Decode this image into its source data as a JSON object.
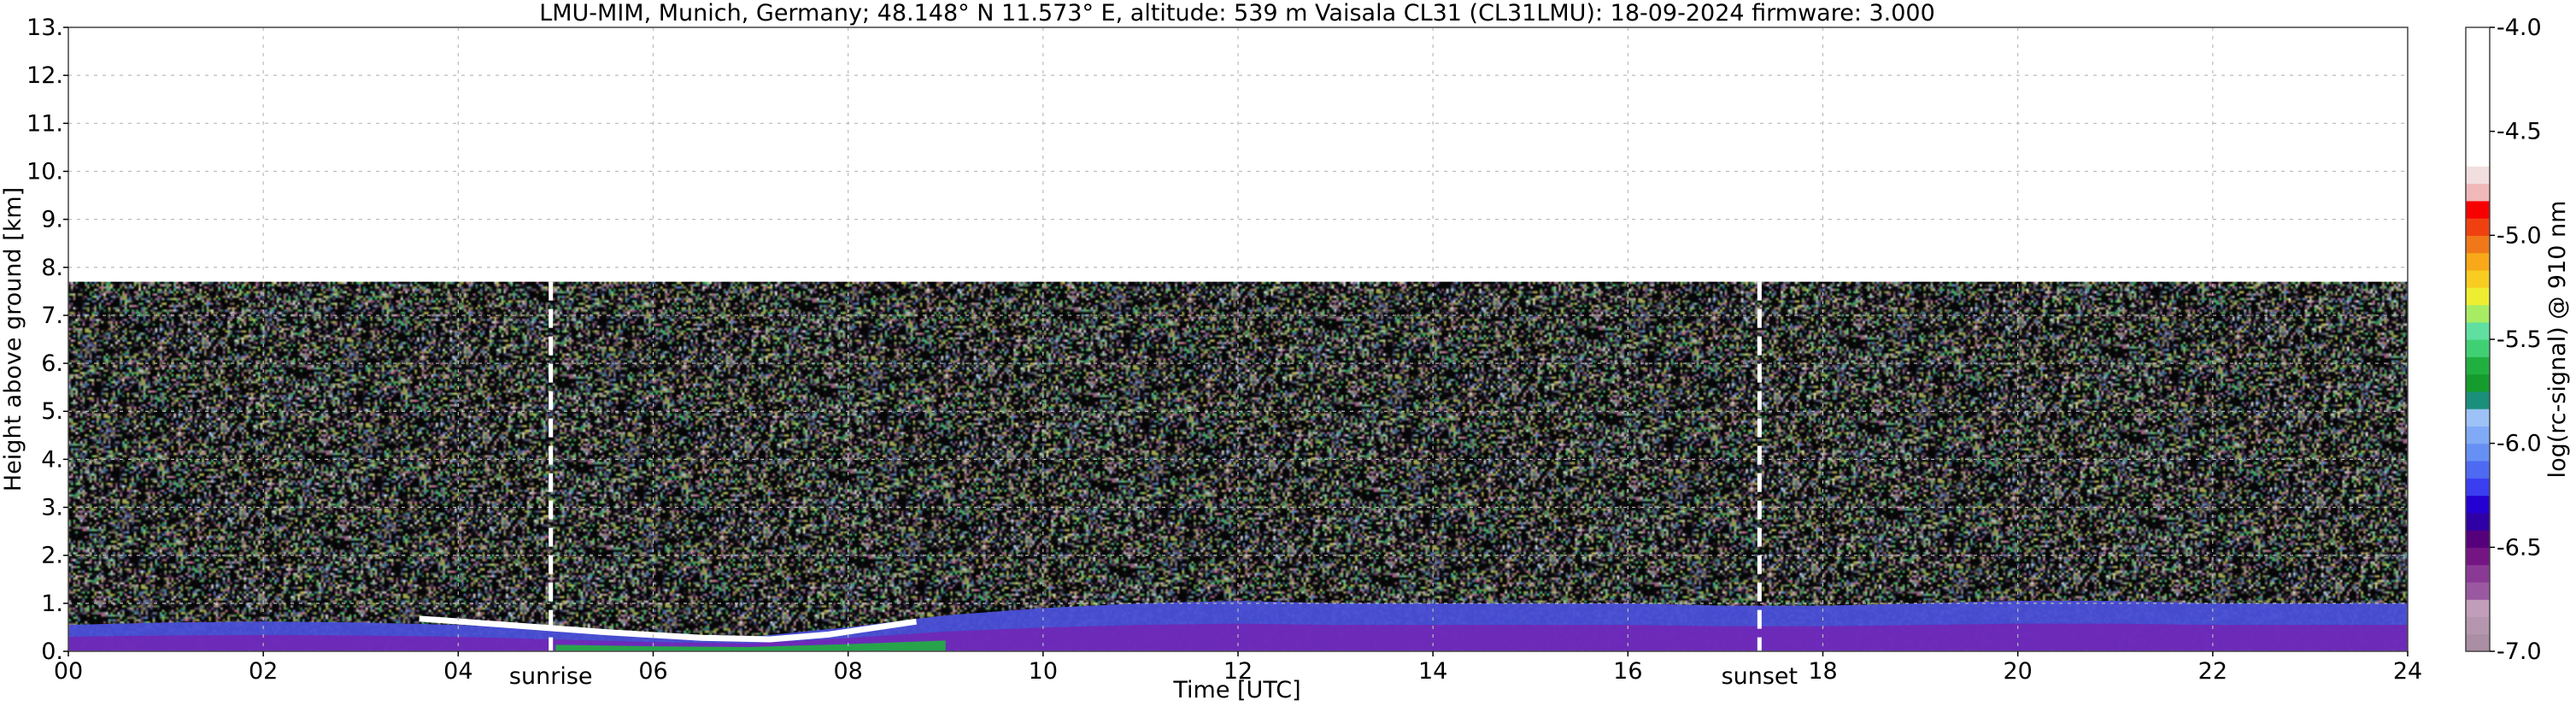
{
  "chart_data": {
    "type": "heatmap",
    "title": "LMU-MIM, Munich, Germany; 48.148° N 11.573° E, altitude: 539 m    Vaisala CL31 (CL31LMU): 18-09-2024    firmware: 3.000",
    "xlabel": "Time [UTC]",
    "ylabel": "Height above ground [km]",
    "xlim": [
      0,
      24
    ],
    "ylim": [
      0,
      13
    ],
    "x_ticks": [
      {
        "value": 0,
        "label": "00"
      },
      {
        "value": 2,
        "label": "02"
      },
      {
        "value": 4,
        "label": "04"
      },
      {
        "value": 6,
        "label": "06"
      },
      {
        "value": 8,
        "label": "08"
      },
      {
        "value": 10,
        "label": "10"
      },
      {
        "value": 12,
        "label": "12"
      },
      {
        "value": 14,
        "label": "14"
      },
      {
        "value": 16,
        "label": "16"
      },
      {
        "value": 18,
        "label": "18"
      },
      {
        "value": 20,
        "label": "20"
      },
      {
        "value": 22,
        "label": "22"
      },
      {
        "value": 24,
        "label": "24"
      }
    ],
    "y_ticks": [
      {
        "value": 0,
        "label": "0."
      },
      {
        "value": 1,
        "label": "1."
      },
      {
        "value": 2,
        "label": "2."
      },
      {
        "value": 3,
        "label": "3."
      },
      {
        "value": 4,
        "label": "4."
      },
      {
        "value": 5,
        "label": "5."
      },
      {
        "value": 6,
        "label": "6."
      },
      {
        "value": 7,
        "label": "7."
      },
      {
        "value": 8,
        "label": "8."
      },
      {
        "value": 9,
        "label": "9."
      },
      {
        "value": 10,
        "label": "10."
      },
      {
        "value": 11,
        "label": "11."
      },
      {
        "value": 12,
        "label": "12."
      },
      {
        "value": 13,
        "label": "13."
      }
    ],
    "grid": true,
    "signal_top_km": 7.7,
    "events": [
      {
        "label": "sunrise",
        "time": 4.95
      },
      {
        "label": "sunset",
        "time": 17.35
      }
    ],
    "colorbar": {
      "label": "log(rc-signal) @ 910 nm",
      "range": [
        -7.0,
        -4.0
      ],
      "ticks": [
        {
          "value": -4.0,
          "label": "-4.0"
        },
        {
          "value": -4.5,
          "label": "-4.5"
        },
        {
          "value": -5.0,
          "label": "-5.0"
        },
        {
          "value": -5.5,
          "label": "-5.5"
        },
        {
          "value": -6.0,
          "label": "-6.0"
        },
        {
          "value": -6.5,
          "label": "-6.5"
        },
        {
          "value": -7.0,
          "label": "-7.0"
        }
      ],
      "colors": [
        "#a98ea4",
        "#b497ae",
        "#c19dba",
        "#9a58a0",
        "#8a3a95",
        "#741583",
        "#56007c",
        "#2f00a6",
        "#2400d2",
        "#3a3ef0",
        "#4e6af2",
        "#6690f4",
        "#80aaf6",
        "#9cc2f7",
        "#1a8f7b",
        "#149d2c",
        "#20b040",
        "#40d074",
        "#60e0a0",
        "#a8ec64",
        "#eeee30",
        "#f8cc20",
        "#f8a818",
        "#f07818",
        "#f04010",
        "#f80000",
        "#f0b8b8",
        "#f2dede",
        "#ffffff",
        "#ffffff",
        "#ffffff",
        "#ffffff",
        "#ffffff",
        "#ffffff",
        "#ffffff",
        "#ffffff"
      ]
    },
    "features": {
      "boundary_layer_top": [
        {
          "t": 0.0,
          "h": 0.55
        },
        {
          "t": 1.0,
          "h": 0.6
        },
        {
          "t": 2.0,
          "h": 0.62
        },
        {
          "t": 3.0,
          "h": 0.6
        },
        {
          "t": 4.0,
          "h": 0.55
        },
        {
          "t": 5.0,
          "h": 0.45
        },
        {
          "t": 6.0,
          "h": 0.35
        },
        {
          "t": 7.0,
          "h": 0.3
        },
        {
          "t": 8.0,
          "h": 0.5
        },
        {
          "t": 9.0,
          "h": 0.75
        },
        {
          "t": 10.0,
          "h": 0.9
        },
        {
          "t": 11.0,
          "h": 1.0
        },
        {
          "t": 12.0,
          "h": 1.05
        },
        {
          "t": 13.0,
          "h": 1.0
        },
        {
          "t": 14.0,
          "h": 1.0
        },
        {
          "t": 15.0,
          "h": 1.0
        },
        {
          "t": 16.0,
          "h": 1.0
        },
        {
          "t": 17.0,
          "h": 0.95
        },
        {
          "t": 18.0,
          "h": 0.95
        },
        {
          "t": 19.0,
          "h": 1.0
        },
        {
          "t": 20.0,
          "h": 1.05
        },
        {
          "t": 21.0,
          "h": 1.05
        },
        {
          "t": 22.0,
          "h": 1.0
        },
        {
          "t": 23.0,
          "h": 1.0
        },
        {
          "t": 24.0,
          "h": 1.0
        }
      ],
      "residual_layer": [
        {
          "t": 3.6,
          "h": 0.68
        },
        {
          "t": 4.5,
          "h": 0.55
        },
        {
          "t": 5.5,
          "h": 0.4
        },
        {
          "t": 6.5,
          "h": 0.28
        },
        {
          "t": 7.2,
          "h": 0.25
        },
        {
          "t": 7.8,
          "h": 0.35
        },
        {
          "t": 8.3,
          "h": 0.5
        },
        {
          "t": 8.7,
          "h": 0.62
        }
      ]
    }
  }
}
